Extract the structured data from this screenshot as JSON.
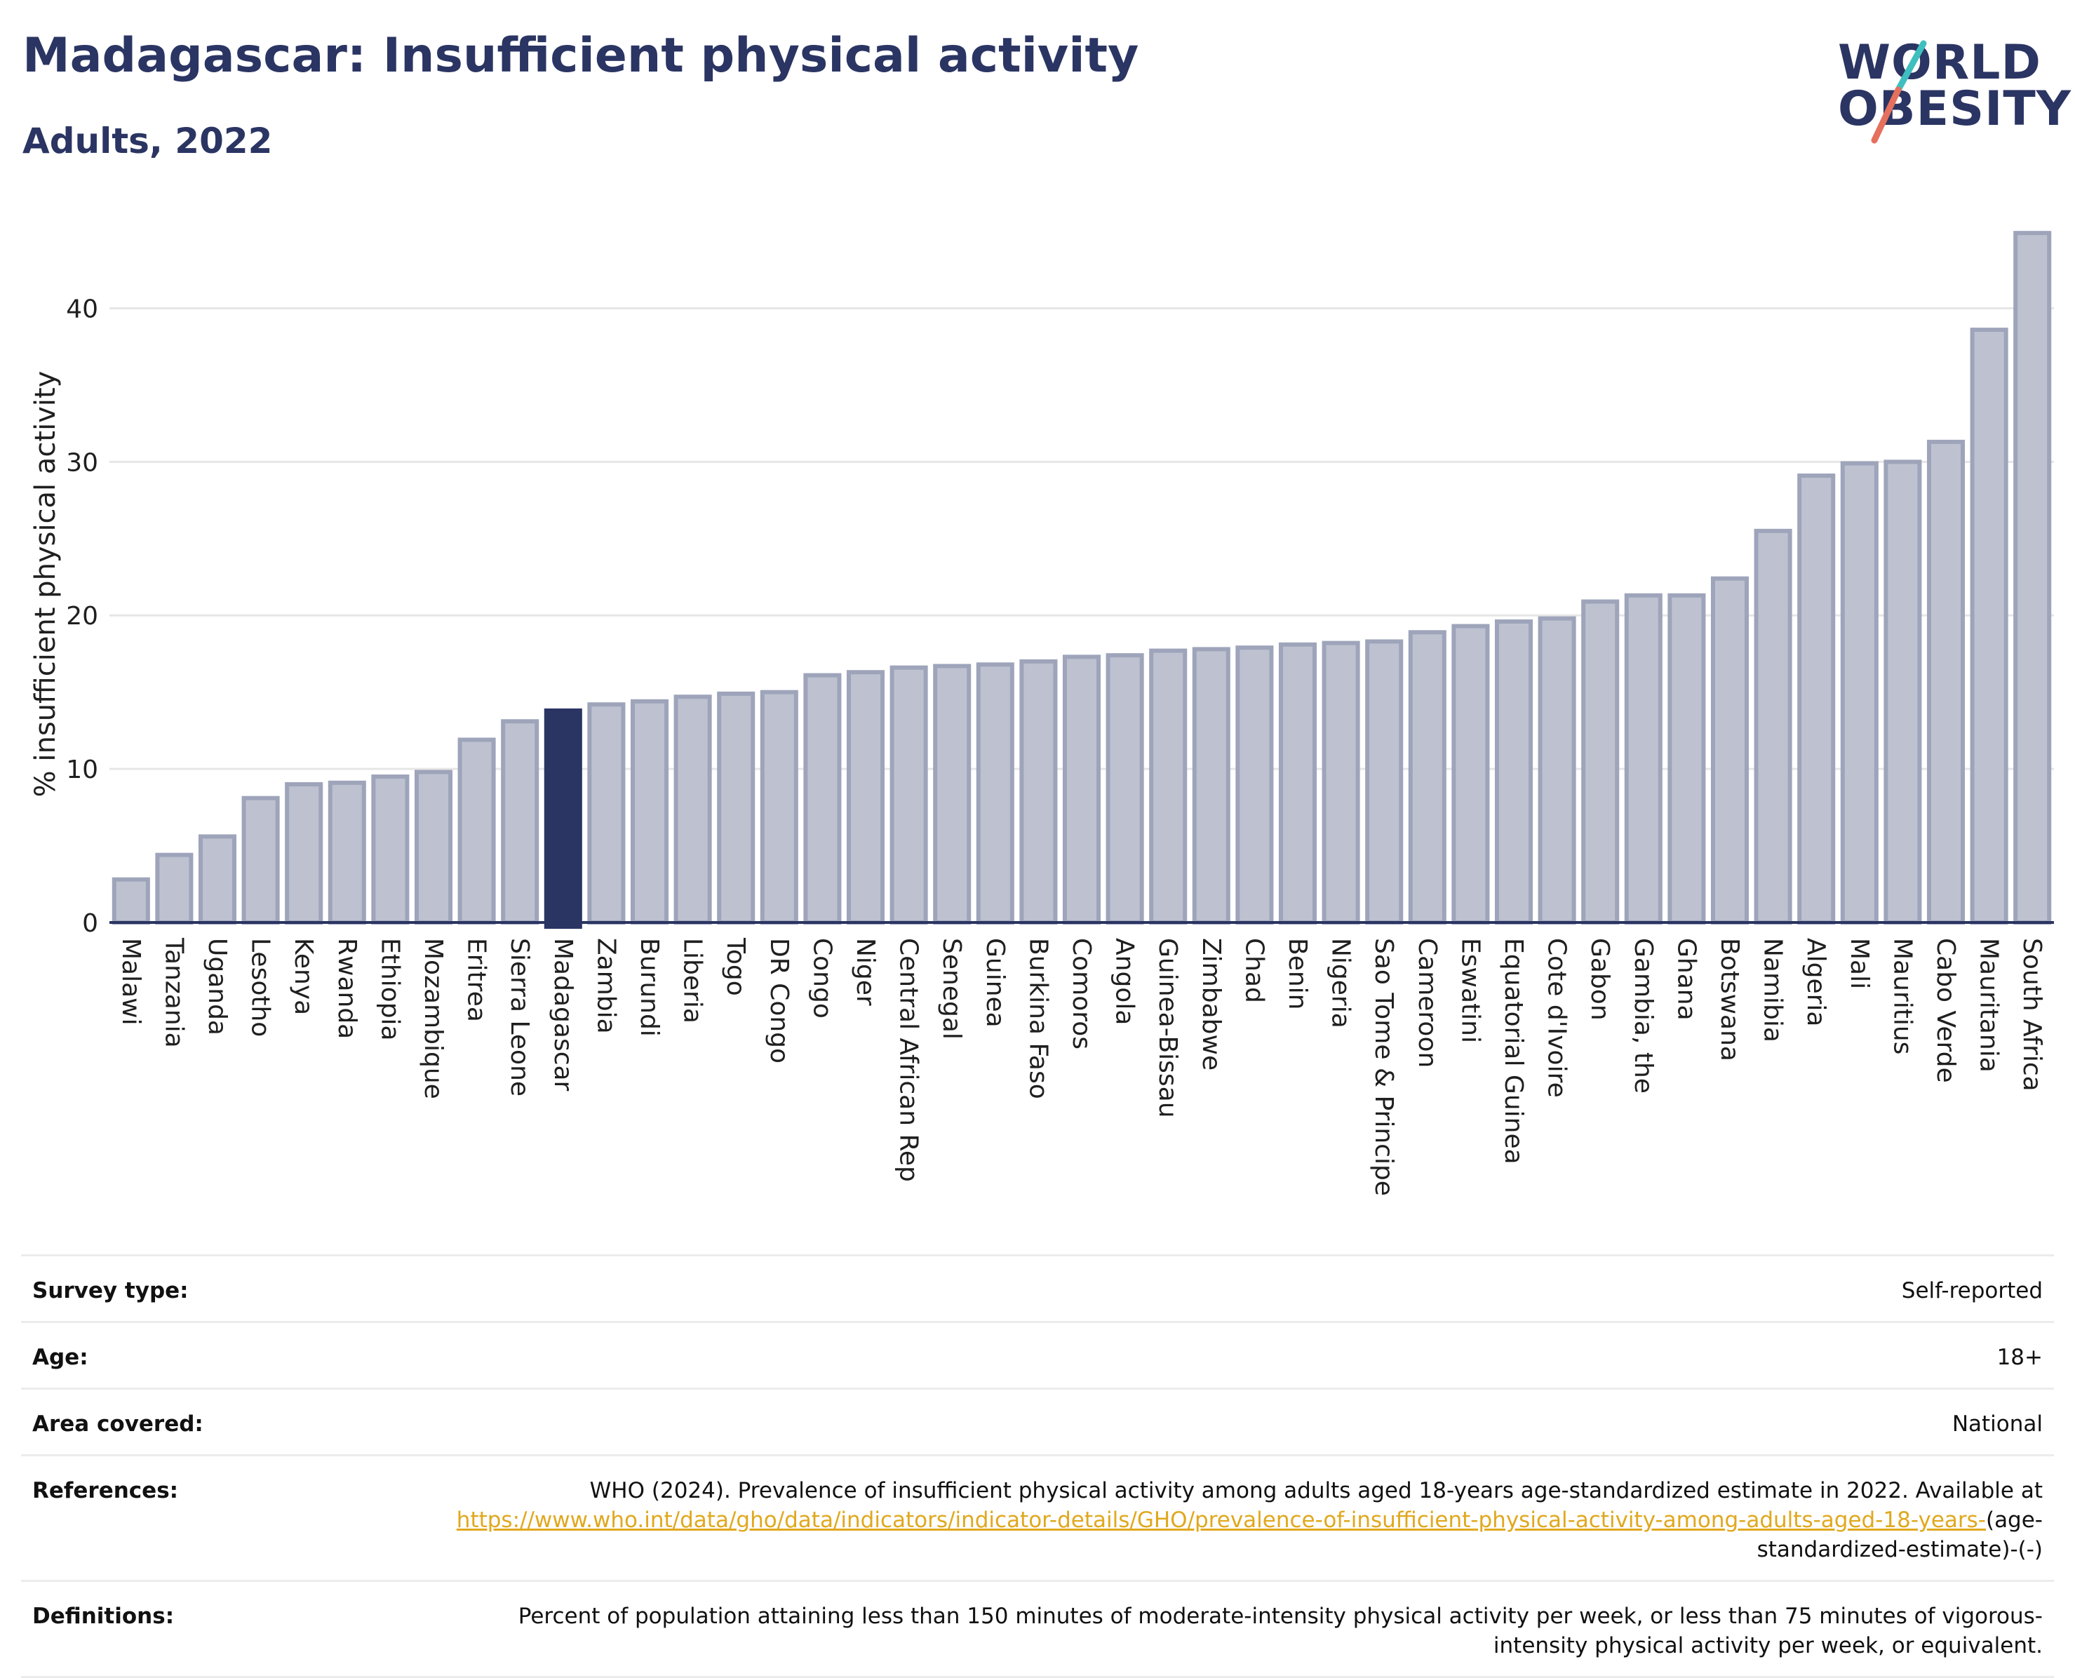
{
  "header": {
    "title": "Madagascar: Insufficient physical activity",
    "subtitle": "Adults, 2022",
    "logo_line1": "WORLD",
    "logo_line2": "OBESITY"
  },
  "chart_data": {
    "type": "bar",
    "title": "Madagascar: Insufficient physical activity",
    "subtitle": "Adults, 2022",
    "xlabel": "",
    "ylabel": "% insufficient physical activity",
    "ylim": [
      0,
      45
    ],
    "yticks": [
      0,
      10,
      20,
      30,
      40
    ],
    "grid": true,
    "highlight": "Madagascar",
    "colors": {
      "bar": "#bec2d0",
      "bar_border": "#9ea4ba",
      "highlight": "#2b3563"
    },
    "categories": [
      "Malawi",
      "Tanzania",
      "Uganda",
      "Lesotho",
      "Kenya",
      "Rwanda",
      "Ethiopia",
      "Mozambique",
      "Eritrea",
      "Sierra Leone",
      "Madagascar",
      "Zambia",
      "Burundi",
      "Liberia",
      "Togo",
      "DR Congo",
      "Congo",
      "Niger",
      "Central African Rep",
      "Senegal",
      "Guinea",
      "Burkina Faso",
      "Comoros",
      "Angola",
      "Guinea-Bissau",
      "Zimbabwe",
      "Chad",
      "Benin",
      "Nigeria",
      "Sao Tome & Principe",
      "Cameroon",
      "Eswatini",
      "Equatorial Guinea",
      "Cote d'Ivoire",
      "Gabon",
      "Gambia, the",
      "Ghana",
      "Botswana",
      "Namibia",
      "Algeria",
      "Mali",
      "Mauritius",
      "Cabo Verde",
      "Mauritania",
      "South Africa"
    ],
    "values": [
      2.8,
      4.4,
      5.6,
      8.1,
      9.0,
      9.1,
      9.5,
      9.8,
      11.9,
      13.1,
      13.8,
      14.2,
      14.4,
      14.7,
      14.9,
      15.0,
      16.1,
      16.3,
      16.6,
      16.7,
      16.8,
      17.0,
      17.3,
      17.4,
      17.7,
      17.8,
      17.9,
      18.1,
      18.2,
      18.3,
      18.9,
      19.3,
      19.6,
      19.8,
      20.9,
      21.3,
      21.3,
      22.4,
      25.5,
      29.1,
      29.9,
      30.0,
      31.3,
      38.6,
      44.9
    ]
  },
  "info": {
    "survey_label": "Survey type:",
    "survey_value": "Self-reported",
    "age_label": "Age:",
    "age_value": "18+",
    "area_label": "Area covered:",
    "area_value": "National",
    "ref_label": "References:",
    "ref_text": "WHO (2024). Prevalence of insufficient physical activity among adults aged 18-years age-standardized estimate in 2022. Available at",
    "ref_link": "https://www.who.int/data/gho/data/indicators/indicator-details/GHO/prevalence-of-insufficient-physical-activity-among-adults-aged-18-years-",
    "ref_suffix": "(age-standardized-estimate)-(-)",
    "def_label": "Definitions:",
    "def_value": "Percent of population attaining less than 150 minutes of moderate-intensity physical activity per week, or less than 75 minutes of vigorous-intensity physical activity per week, or equivalent."
  }
}
